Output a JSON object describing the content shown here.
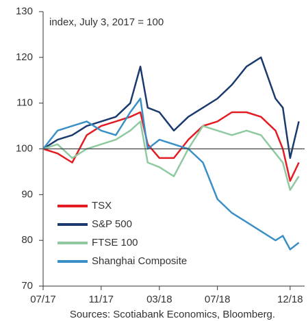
{
  "chart_data": {
    "type": "line",
    "annotation": "index, July 3, 2017 = 100",
    "source": "Sources: Scotiabank Economics, Bloomberg.",
    "x": [
      2017.5,
      2017.583,
      2017.667,
      2017.75,
      2017.833,
      2017.917,
      2018.0,
      2018.058,
      2018.1,
      2018.167,
      2018.25,
      2018.333,
      2018.417,
      2018.5,
      2018.583,
      2018.667,
      2018.75,
      2018.833,
      2018.875,
      2018.917,
      2018.967
    ],
    "series": [
      {
        "name": "TSX",
        "color": "#e31b23",
        "values": [
          100,
          99,
          97,
          103,
          105,
          106,
          107,
          108,
          101,
          98,
          98,
          102,
          105,
          106,
          108,
          108,
          107,
          104,
          100,
          93,
          97
        ]
      },
      {
        "name": "S&P 500",
        "color": "#1a3a6e",
        "values": [
          100,
          102,
          103,
          105,
          106,
          107,
          110,
          118,
          109,
          108,
          104,
          107,
          109,
          111,
          114,
          118,
          120,
          111,
          109,
          98,
          106
        ]
      },
      {
        "name": "FTSE 100",
        "color": "#8fc9a0",
        "values": [
          100,
          101,
          98,
          100,
          101,
          102,
          104,
          106,
          97,
          96,
          94,
          100,
          105,
          104,
          103,
          104,
          103,
          99,
          97,
          91,
          94
        ]
      },
      {
        "name": "Shanghai Composite",
        "color": "#3a8fc7",
        "values": [
          100,
          104,
          105,
          106,
          104,
          103,
          108,
          111,
          100,
          102,
          101,
          100,
          97,
          89,
          86,
          84,
          82,
          80,
          81,
          78,
          79.5
        ]
      }
    ],
    "reference_line": 100,
    "xlim": [
      2017.5,
      2019.0
    ],
    "xticks": [
      {
        "value": 2017.5,
        "label": "07/17"
      },
      {
        "value": 2017.833,
        "label": "11/17"
      },
      {
        "value": 2018.167,
        "label": "03/18"
      },
      {
        "value": 2018.5,
        "label": "07/18"
      },
      {
        "value": 2018.917,
        "label": "12/18"
      }
    ],
    "ylim": [
      70,
      130
    ],
    "yticks": [
      70,
      80,
      90,
      100,
      110,
      120,
      130
    ],
    "legend": "lower left"
  }
}
